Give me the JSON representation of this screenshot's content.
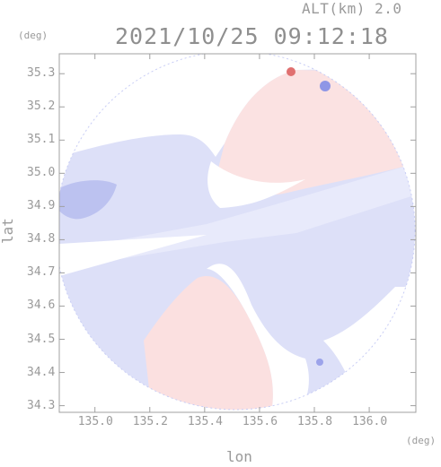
{
  "header": {
    "altitude": "ALT(km) 2.0",
    "timestamp": "2021/10/25 09:12:18"
  },
  "axes": {
    "y_unit": "(deg)",
    "x_unit": "(deg)",
    "y_label": "lat",
    "x_label": "lon"
  },
  "map_data": {
    "type": "radar-doppler-ppi",
    "x_range": [
      134.87,
      136.17
    ],
    "y_range": [
      34.28,
      35.36
    ],
    "x_ticks": [
      "135.0",
      "135.2",
      "135.4",
      "135.6",
      "135.8",
      "136.0"
    ],
    "y_ticks": [
      "35.3",
      "35.2",
      "35.1",
      "35.0",
      "34.9",
      "34.8",
      "34.7",
      "34.6",
      "34.5",
      "34.4",
      "34.3"
    ],
    "colors": {
      "approaching": "#c8cdf5",
      "approaching_strong": "#8e96e6",
      "receding": "#f8d6d6",
      "receding_strong": "#e07070",
      "axis": "#a0a0a0"
    }
  }
}
